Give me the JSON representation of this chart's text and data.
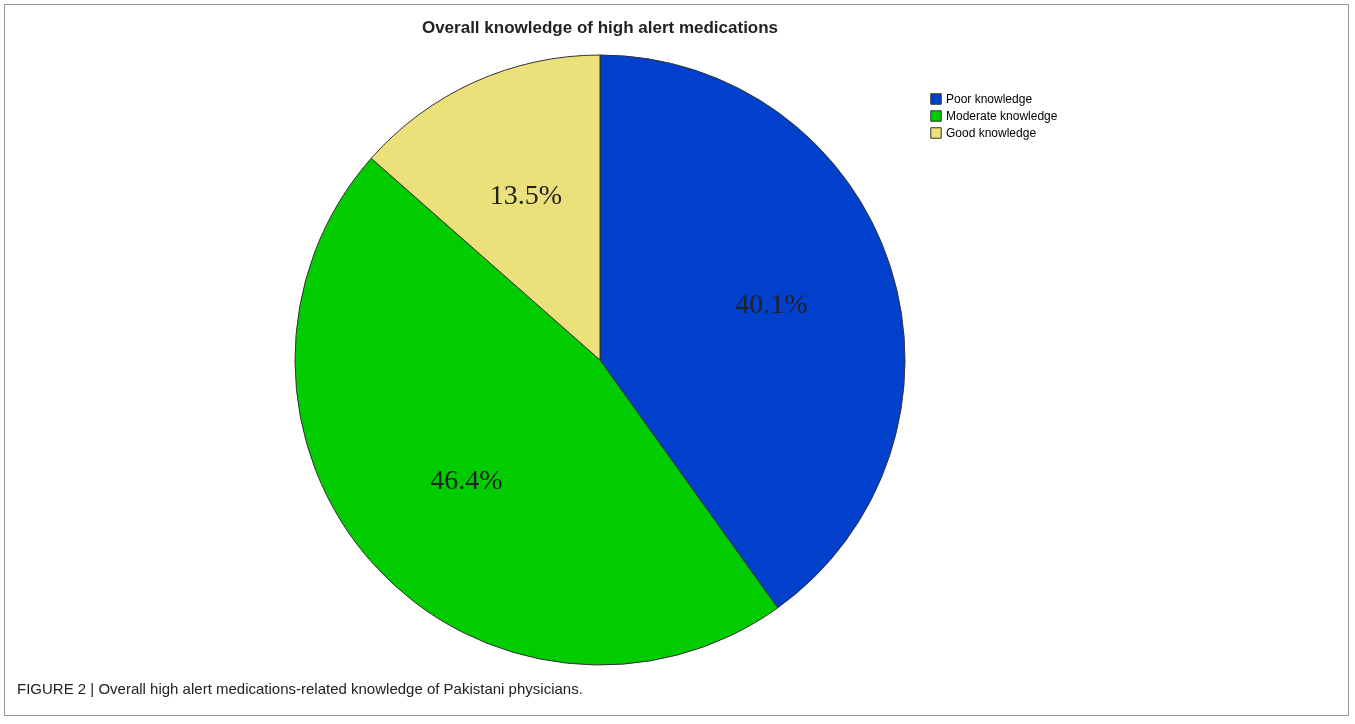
{
  "chart_data": {
    "type": "pie",
    "title": "Overall knowledge of high alert medications",
    "categories": [
      "Poor knowledge",
      "Moderate knowledge",
      "Good knowledge"
    ],
    "values": [
      40.1,
      46.4,
      13.5
    ],
    "colors": [
      "#0040cc",
      "#00cc00",
      "#ece07a"
    ],
    "value_labels": [
      "40.1%",
      "46.4%",
      "13.5%"
    ],
    "legend": "top right",
    "annotations": [
      "FIGURE 2 | Overall high alert medications-related knowledge of Pakistani physicians."
    ]
  }
}
